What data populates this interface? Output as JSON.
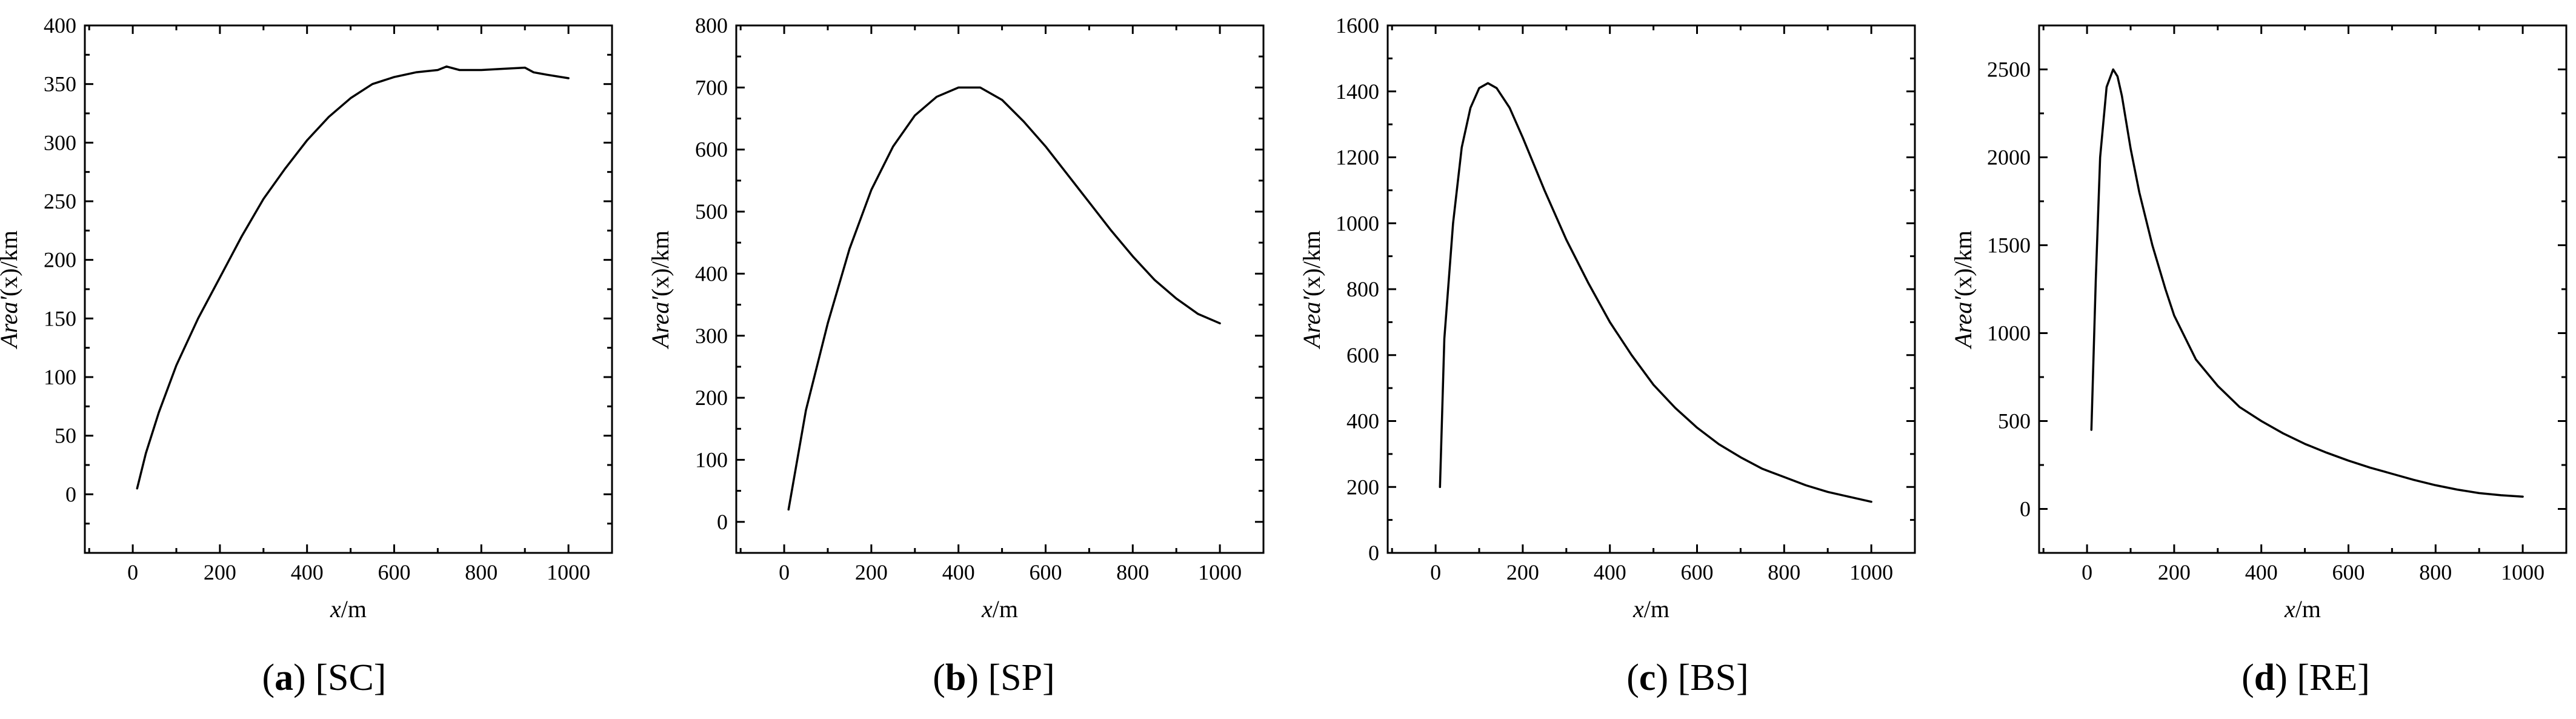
{
  "chart_data": [
    {
      "type": "line",
      "caption_letter": "a",
      "caption_rest": " [SC]",
      "xlabel_italic": "x",
      "xlabel_rest": "/m",
      "ylabel_italic": "Area'",
      "ylabel_rest": "(x)/km",
      "xlim": [
        -110,
        1100
      ],
      "ylim": [
        -50,
        400
      ],
      "xticks": [
        0,
        200,
        400,
        600,
        800,
        1000
      ],
      "yticks": [
        0,
        50,
        100,
        150,
        200,
        250,
        300,
        350,
        400
      ],
      "x": [
        10,
        30,
        60,
        100,
        150,
        200,
        250,
        300,
        350,
        400,
        450,
        500,
        550,
        600,
        650,
        700,
        720,
        750,
        800,
        850,
        900,
        920,
        950,
        1000
      ],
      "y": [
        5,
        35,
        70,
        110,
        150,
        185,
        220,
        252,
        278,
        302,
        322,
        338,
        350,
        356,
        360,
        362,
        365,
        362,
        362,
        363,
        364,
        360,
        358,
        355
      ]
    },
    {
      "type": "line",
      "caption_letter": "b",
      "caption_rest": " [SP]",
      "xlabel_italic": "x",
      "xlabel_rest": "/m",
      "ylabel_italic": "Area'",
      "ylabel_rest": "(x)/km",
      "xlim": [
        -110,
        1100
      ],
      "ylim": [
        -50,
        800
      ],
      "xticks": [
        0,
        200,
        400,
        600,
        800,
        1000
      ],
      "yticks": [
        0,
        100,
        200,
        300,
        400,
        500,
        600,
        700,
        800
      ],
      "x": [
        10,
        50,
        100,
        150,
        200,
        250,
        300,
        350,
        400,
        450,
        500,
        550,
        600,
        650,
        700,
        750,
        800,
        850,
        900,
        950,
        1000
      ],
      "y": [
        20,
        180,
        320,
        440,
        535,
        605,
        655,
        685,
        700,
        700,
        680,
        645,
        605,
        560,
        515,
        470,
        428,
        390,
        360,
        335,
        320
      ]
    },
    {
      "type": "line",
      "caption_letter": "c",
      "caption_rest": " [BS]",
      "xlabel_italic": "x",
      "xlabel_rest": "/m",
      "ylabel_italic": "Area'",
      "ylabel_rest": "(x)/km",
      "xlim": [
        -110,
        1100
      ],
      "ylim": [
        0,
        1600
      ],
      "xticks": [
        0,
        200,
        400,
        600,
        800,
        1000
      ],
      "yticks": [
        0,
        200,
        400,
        600,
        800,
        1000,
        1200,
        1400,
        1600
      ],
      "x": [
        10,
        20,
        40,
        60,
        80,
        100,
        120,
        140,
        170,
        200,
        250,
        300,
        350,
        400,
        450,
        500,
        550,
        600,
        650,
        700,
        750,
        800,
        850,
        900,
        950,
        1000
      ],
      "y": [
        200,
        650,
        1000,
        1230,
        1350,
        1410,
        1425,
        1410,
        1350,
        1260,
        1100,
        950,
        820,
        700,
        600,
        510,
        440,
        380,
        330,
        290,
        255,
        230,
        205,
        185,
        170,
        155
      ]
    },
    {
      "type": "line",
      "caption_letter": "d",
      "caption_rest": " [RE]",
      "xlabel_italic": "x",
      "xlabel_rest": "/m",
      "ylabel_italic": "Area'",
      "ylabel_rest": "(x)/km",
      "xlim": [
        -110,
        1100
      ],
      "ylim": [
        -250,
        2750
      ],
      "xticks": [
        0,
        200,
        400,
        600,
        800,
        1000
      ],
      "yticks": [
        0,
        500,
        1000,
        1500,
        2000,
        2500
      ],
      "x": [
        10,
        20,
        30,
        45,
        60,
        70,
        80,
        100,
        120,
        150,
        180,
        200,
        250,
        300,
        350,
        400,
        450,
        500,
        550,
        600,
        650,
        700,
        750,
        800,
        850,
        900,
        950,
        1000
      ],
      "y": [
        450,
        1300,
        2000,
        2400,
        2500,
        2460,
        2350,
        2050,
        1800,
        1500,
        1250,
        1100,
        850,
        700,
        580,
        500,
        430,
        370,
        320,
        275,
        235,
        200,
        165,
        135,
        110,
        90,
        78,
        70
      ]
    }
  ]
}
